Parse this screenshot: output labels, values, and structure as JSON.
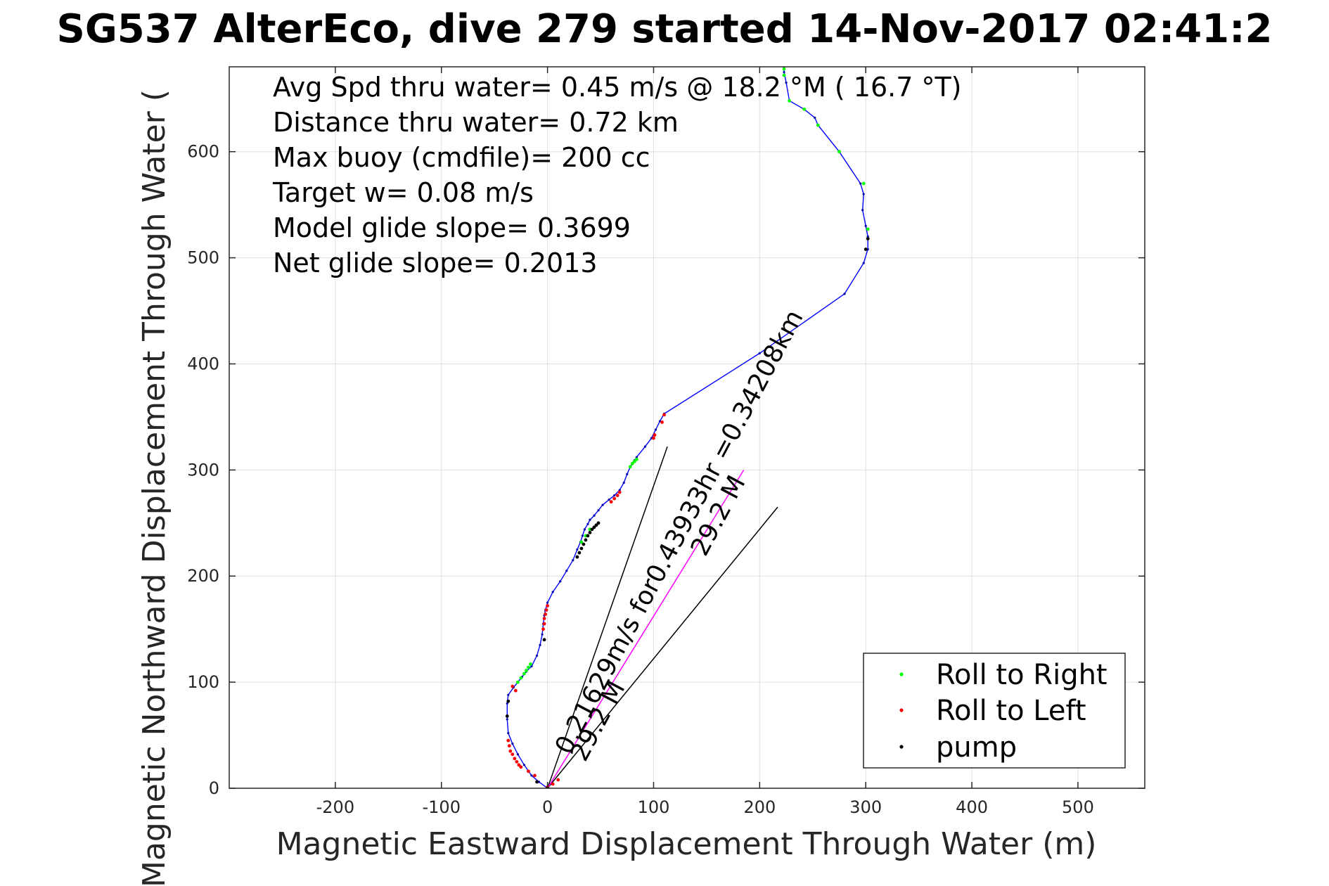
{
  "chart_data": {
    "type": "scatter",
    "title": "SG537 AlterEco, dive 279 started 14-Nov-2017 02:41:2",
    "xlabel": "Magnetic Eastward Displacement Through Water (m)",
    "ylabel": "Magnetic Northward Displacement Through Water (",
    "xlim": [
      -300,
      563
    ],
    "ylim": [
      0,
      680
    ],
    "xticks": [
      -200,
      -100,
      0,
      100,
      200,
      300,
      400,
      500
    ],
    "yticks": [
      0,
      100,
      200,
      300,
      400,
      500,
      600
    ],
    "grid": true,
    "legend_position": "bottom-right",
    "annotations": [
      "Avg Spd thru water=  0.45 m/s @  18.2 °M ( 16.7 °T)",
      "Distance thru water=  0.72 km",
      "Max buoy (cmdfile)= 200 cc",
      "Target w= 0.08 m/s",
      "Model glide slope= 0.3699",
      "Net glide slope= 0.2013"
    ],
    "slanted_labels": [
      "0.21629m/s for0.43933hr =0.34208km",
      "29.2 M",
      "29.2 M"
    ],
    "colors": {
      "track": "#0000ff",
      "roll_right": "#00ff00",
      "roll_left": "#ff0000",
      "pump": "#000000",
      "current_line": "#ff00ff",
      "vector": "#000000"
    },
    "track": {
      "name": "",
      "x": [
        0,
        -8,
        -15,
        -22,
        -28,
        -33,
        -37,
        -38,
        -38,
        -37,
        -32,
        -28,
        -24,
        -20,
        -15,
        -10,
        -7,
        -5,
        -4,
        -3,
        -2,
        0,
        5,
        12,
        18,
        24,
        28,
        31,
        33,
        35,
        38,
        40,
        44,
        48,
        52,
        58,
        63,
        68,
        72,
        75,
        78,
        80,
        82,
        84,
        92,
        98,
        102,
        106,
        110,
        200,
        280,
        298,
        302,
        302,
        300,
        297,
        298,
        295,
        275,
        255,
        252,
        242,
        228,
        225,
        223,
        223
      ],
      "y": [
        0,
        6,
        12,
        22,
        32,
        42,
        52,
        65,
        80,
        88,
        95,
        100,
        105,
        110,
        115,
        125,
        135,
        145,
        155,
        163,
        168,
        175,
        185,
        195,
        205,
        215,
        225,
        232,
        238,
        244,
        249,
        253,
        257,
        262,
        267,
        272,
        276,
        281,
        288,
        296,
        303,
        306,
        309,
        312,
        322,
        330,
        338,
        346,
        353,
        410,
        466,
        495,
        508,
        520,
        530,
        545,
        560,
        570,
        600,
        625,
        632,
        640,
        648,
        665,
        675,
        680
      ]
    },
    "series": [
      {
        "name": "Roll to Right",
        "color": "#00ff00",
        "x": [
          -28,
          -25,
          -22,
          -20,
          -18,
          -16,
          32,
          36,
          40,
          78,
          80,
          82,
          84,
          302,
          298,
          275,
          255,
          242,
          228,
          223,
          223
        ],
        "y": [
          100,
          104,
          108,
          111,
          114,
          117,
          232,
          238,
          244,
          303,
          306,
          308,
          310,
          527,
          570,
          600,
          625,
          640,
          648,
          672,
          678
        ]
      },
      {
        "name": "Roll to Left",
        "color": "#ff0000",
        "x": [
          -37,
          -36,
          -35,
          -33,
          -31,
          -29,
          -27,
          -25,
          -4,
          -3,
          -3,
          -2,
          -1,
          0,
          60,
          63,
          66,
          68,
          100,
          101,
          108,
          110,
          0,
          5,
          10,
          -12,
          -18,
          -30,
          -33
        ],
        "y": [
          45,
          40,
          35,
          32,
          28,
          25,
          22,
          20,
          150,
          155,
          160,
          164,
          168,
          172,
          270,
          273,
          276,
          279,
          330,
          333,
          345,
          352,
          1,
          4,
          8,
          12,
          16,
          92,
          96
        ],
        "note": ""
      },
      {
        "name": "pump",
        "color": "#000000",
        "x": [
          28,
          30,
          32,
          34,
          36,
          38,
          40,
          42,
          44,
          46,
          48,
          300,
          302,
          -3,
          -38,
          -37,
          0,
          -10
        ],
        "y": [
          218,
          222,
          226,
          230,
          234,
          238,
          241,
          244,
          246,
          248,
          250,
          508,
          518,
          140,
          68,
          82,
          0,
          6
        ]
      }
    ],
    "current_line": {
      "x": [
        0,
        185
      ],
      "y": [
        0,
        300
      ]
    },
    "vectors": [
      {
        "x": [
          0,
          113
        ],
        "y": [
          0,
          322
        ]
      },
      {
        "x": [
          0,
          217
        ],
        "y": [
          0,
          265
        ]
      }
    ]
  }
}
